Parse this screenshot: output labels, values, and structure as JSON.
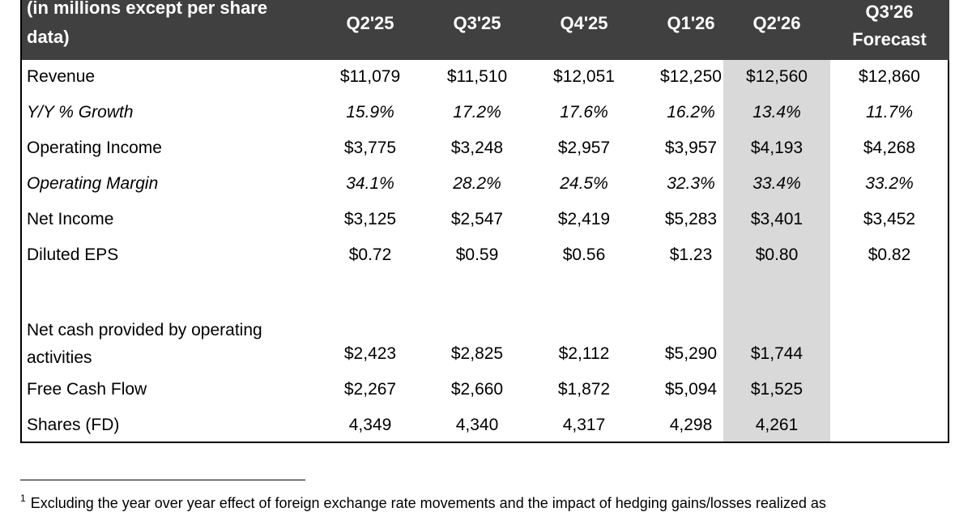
{
  "header": {
    "title_line1": "(in millions except per share",
    "title_line2": "data)",
    "columns": [
      "Q2'25",
      "Q3'25",
      "Q4'25",
      "Q1'26",
      "Q2'26"
    ],
    "forecast_line1": "Q3'26",
    "forecast_line2": "Forecast"
  },
  "rows": [
    {
      "label": "Revenue",
      "italic": false,
      "values": [
        "$11,079",
        "$11,510",
        "$12,051",
        "$12,250",
        "$12,560",
        "$12,860"
      ]
    },
    {
      "label": "Y/Y % Growth",
      "italic": true,
      "values": [
        "15.9%",
        "17.2%",
        "17.6%",
        "16.2%",
        "13.4%",
        "11.7%"
      ]
    },
    {
      "label": "Operating Income",
      "italic": false,
      "values": [
        "$3,775",
        "$3,248",
        "$2,957",
        "$3,957",
        "$4,193",
        "$4,268"
      ]
    },
    {
      "label": "Operating Margin",
      "italic": true,
      "values": [
        "34.1%",
        "28.2%",
        "24.5%",
        "32.3%",
        "33.4%",
        "33.2%"
      ]
    },
    {
      "label": "Net Income",
      "italic": false,
      "values": [
        "$3,125",
        "$2,547",
        "$2,419",
        "$5,283",
        "$3,401",
        "$3,452"
      ]
    },
    {
      "label": "Diluted EPS",
      "italic": false,
      "values": [
        "$0.72",
        "$0.59",
        "$0.56",
        "$1.23",
        "$0.80",
        "$0.82"
      ]
    }
  ],
  "cash_rows": [
    {
      "label_line1": "Net cash provided by operating",
      "label_line2": "activities",
      "values": [
        "$2,423",
        "$2,825",
        "$2,112",
        "$5,290",
        "$1,744"
      ]
    },
    {
      "label": "Free Cash Flow",
      "values": [
        "$2,267",
        "$2,660",
        "$1,872",
        "$5,094",
        "$1,525"
      ]
    },
    {
      "label": "Shares (FD)",
      "values": [
        "4,349",
        "4,340",
        "4,317",
        "4,298",
        "4,261"
      ]
    }
  ],
  "footnote": {
    "marker": "1",
    "text": "Excluding the year over year effect of foreign exchange rate movements and the impact of hedging gains/losses realized as"
  },
  "colors": {
    "header_bg": "#404040",
    "highlight_column": "#d9d9d9"
  }
}
